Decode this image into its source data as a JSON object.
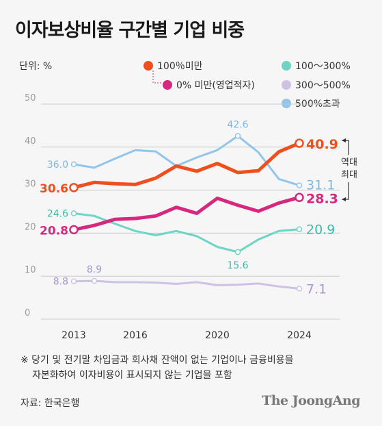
{
  "title": "이자보상비율 구간별 기업 비중",
  "unit": "단위: %",
  "legend": [
    {
      "name": "100％미만",
      "color": "#f04e1c"
    },
    {
      "name": "0% 미만(영업적자)",
      "color": "#d6287e"
    },
    {
      "name": "100～300%",
      "color": "#6cd5c4"
    },
    {
      "name": "300～500%",
      "color": "#cdc1e4"
    },
    {
      "name": "500%초과",
      "color": "#92c5ea"
    }
  ],
  "annotation": "역대 최대",
  "note": [
    "※ 당기 및 전기말 차입금과 회사채 잔액이 없는 기업이나 금융비용을",
    "자본화하여 이자비용이 표시되지 않는 기업을 포함"
  ],
  "source": "자료: 한국은행",
  "brand": "The JoongAng",
  "chart_data": {
    "type": "line",
    "x": [
      2013,
      2014,
      2015,
      2016,
      2017,
      2018,
      2019,
      2020,
      2021,
      2022,
      2023,
      2024
    ],
    "xticks": [
      2013,
      2016,
      2020,
      2024
    ],
    "yticks": [
      0,
      10,
      20,
      30,
      40,
      50
    ],
    "ylim": [
      0,
      50
    ],
    "series": [
      {
        "name": "500%초과",
        "color": "#92c5ea",
        "values": [
          36.0,
          35.2,
          37.3,
          39.3,
          39.0,
          35.6,
          37.6,
          39.3,
          42.6,
          38.8,
          32.6,
          31.1
        ]
      },
      {
        "name": "100～300%",
        "color": "#6cd5c4",
        "values": [
          24.6,
          24.0,
          22.2,
          20.5,
          19.5,
          20.5,
          19.3,
          16.8,
          15.6,
          18.5,
          20.5,
          20.9
        ]
      },
      {
        "name": "300～500%",
        "color": "#cdc1e4",
        "values": [
          8.8,
          8.9,
          8.6,
          8.6,
          8.5,
          8.2,
          8.6,
          7.9,
          8.0,
          8.3,
          7.6,
          7.1
        ]
      },
      {
        "name": "0% 미만(영업적자)",
        "color": "#d6287e",
        "values": [
          20.8,
          21.8,
          23.2,
          23.4,
          24.0,
          26.0,
          24.6,
          28.1,
          26.5,
          25.1,
          27.0,
          28.3
        ]
      },
      {
        "name": "100％미만",
        "color": "#f04e1c",
        "values": [
          30.6,
          31.8,
          31.5,
          31.3,
          32.8,
          35.6,
          34.4,
          36.2,
          34.1,
          34.5,
          38.9,
          40.9
        ]
      }
    ],
    "labels": {
      "500%초과": [
        "36.0",
        "42.6",
        "31.1"
      ],
      "100～300%": [
        "24.6",
        "15.6",
        "20.9"
      ],
      "300～500%": [
        "8.8",
        "8.9",
        "7.1"
      ],
      "0% 미만(영업적자)": [
        "20.8",
        "28.3"
      ],
      "100％미만": [
        "30.6",
        "40.9"
      ]
    }
  }
}
